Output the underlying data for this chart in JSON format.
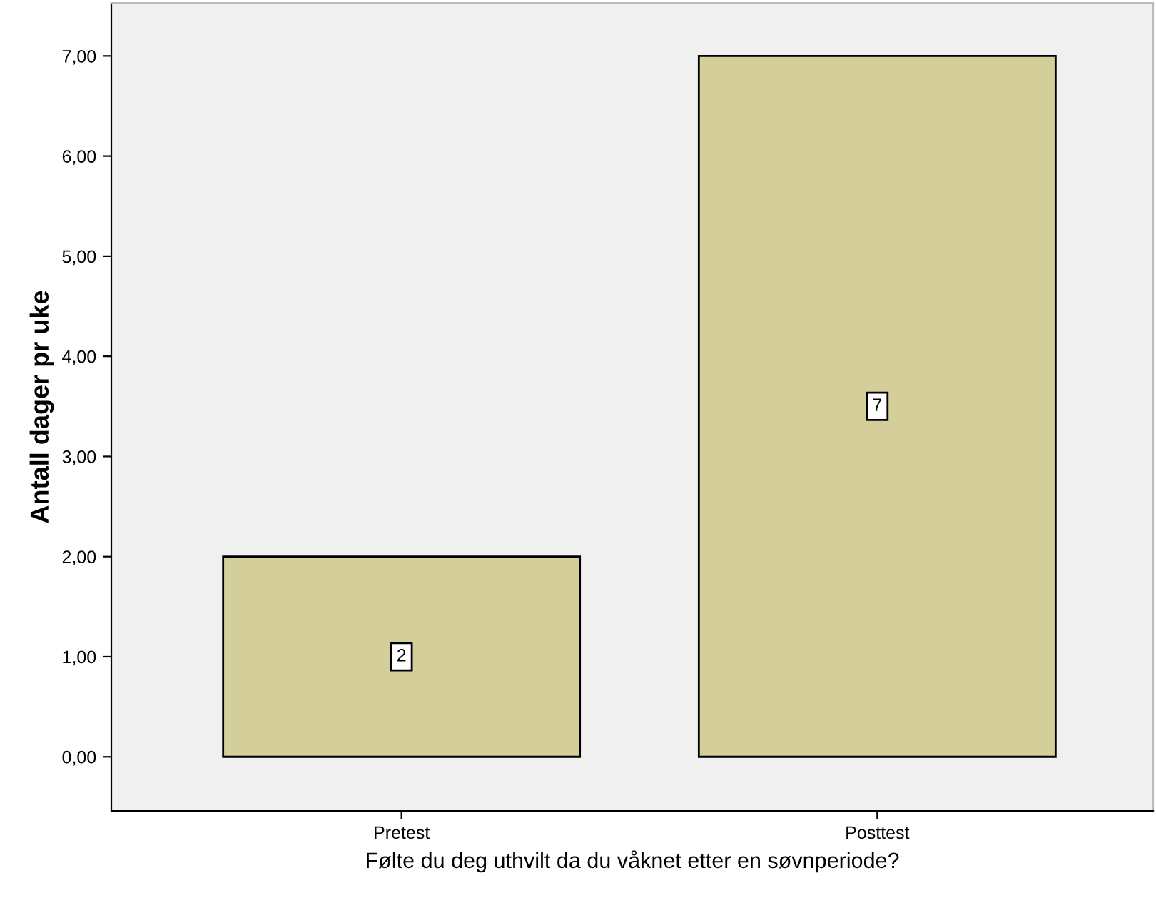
{
  "chart_data": {
    "type": "bar",
    "xlabel": "Følte du deg uthvilt da du våknet etter en søvnperiode?",
    "ylabel": "Antall dager pr uke",
    "categories": [
      "Pretest",
      "Posttest"
    ],
    "values": [
      2,
      7
    ],
    "color": "#d3ce9a",
    "ylim": [
      -0.54,
      7.53
    ],
    "yticks": [
      {
        "value": 0,
        "label": "0,00"
      },
      {
        "value": 1,
        "label": "1,00"
      },
      {
        "value": 2,
        "label": "2,00"
      },
      {
        "value": 3,
        "label": "3,00"
      },
      {
        "value": 4,
        "label": "4,00"
      },
      {
        "value": 5,
        "label": "5,00"
      },
      {
        "value": 6,
        "label": "6,00"
      },
      {
        "value": 7,
        "label": "7,00"
      }
    ],
    "data_labels": true,
    "grid": false
  }
}
